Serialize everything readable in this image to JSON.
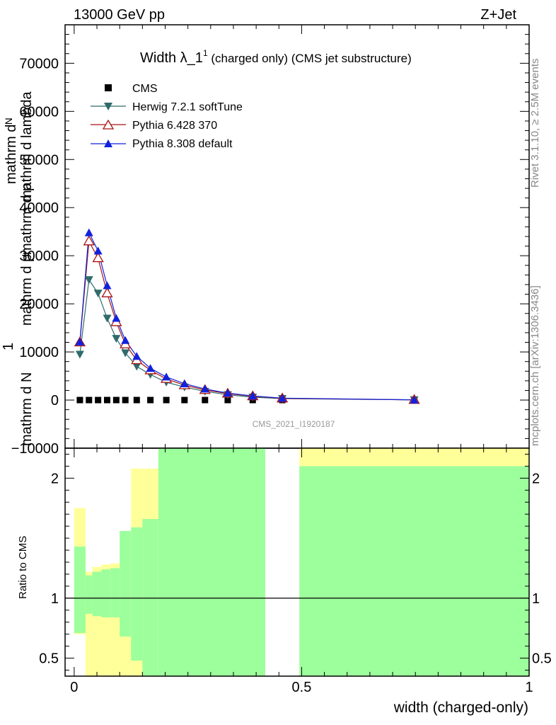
{
  "header": {
    "left": "13000 GeV pp",
    "right": "Z+Jet",
    "rivet": "Rivet 3.1.10, ≥ 2.5M events",
    "mcplots": "mcplots.cern.ch [arXiv:1306.3436]",
    "watermark": "CMS_2021_I1920187"
  },
  "plot_title": {
    "main": "Width λ_1",
    "sup": "1",
    "rest": " (charged only) (CMS jet substructure)"
  },
  "ylabel_lines": [
    "mathrm d N",
    "mathrm d p",
    "mathrm d lambda",
    "mathrm dᴺ",
    "mathrm d p",
    "1"
  ],
  "ratio_ylabel": "Ratio to CMS",
  "xlabel": "width (charged-only)",
  "colors": {
    "cms": "#000000",
    "herwig": "#2f6b6b",
    "pythia6": "#aa1111",
    "pythia8": "#1122dd",
    "band_inner": "#9cff9c",
    "band_outer": "#ffff99"
  },
  "chart_data": [
    {
      "type": "line",
      "x": [
        0.0125,
        0.0325,
        0.0525,
        0.0725,
        0.0925,
        0.1125,
        0.1375,
        0.1675,
        0.2025,
        0.2425,
        0.2875,
        0.3375,
        0.3925,
        0.4575,
        0.7475
      ],
      "series": [
        {
          "name": "CMS",
          "marker": "square",
          "values": [
            0,
            0,
            0,
            0,
            0,
            0,
            0,
            0,
            0,
            0,
            0,
            0,
            0,
            0,
            0
          ]
        },
        {
          "name": "Herwig 7.2.1 softTune",
          "marker": "triangle-down",
          "values": [
            9500,
            25000,
            22200,
            17000,
            12800,
            9800,
            7000,
            5300,
            3700,
            2700,
            1800,
            1100,
            600,
            300,
            50
          ]
        },
        {
          "name": "Pythia 6.428 370",
          "marker": "triangle-up-open",
          "values": [
            12000,
            33000,
            29500,
            22200,
            16200,
            11600,
            8300,
            6200,
            4400,
            3100,
            2100,
            1350,
            800,
            350,
            40
          ]
        },
        {
          "name": "Pythia 8.308 default",
          "marker": "triangle-up",
          "values": [
            12100,
            34800,
            31000,
            23800,
            17000,
            12400,
            9100,
            6600,
            4800,
            3400,
            2300,
            1450,
            850,
            400,
            40
          ]
        }
      ],
      "xlim": [
        -0.02,
        1.0
      ],
      "ylim": [
        -10000,
        78000
      ],
      "yticks": [
        -10000,
        0,
        10000,
        20000,
        30000,
        40000,
        50000,
        60000,
        70000
      ],
      "ytick_labels": [
        "−10000",
        "0",
        "10000",
        "20000",
        "30000",
        "40000",
        "50000",
        "60000",
        "70000"
      ],
      "legend": "top-left"
    },
    {
      "type": "area",
      "ylabel": "Ratio to CMS",
      "xlabel": "width (charged-only)",
      "xlim": [
        -0.02,
        1.0
      ],
      "ylim": [
        0.35,
        2.25
      ],
      "xticks": [
        0,
        0.5,
        1
      ],
      "xtick_labels": [
        "0",
        "0.5",
        "1"
      ],
      "yticks": [
        0.5,
        1,
        2
      ],
      "ytick_labels": [
        "0.5",
        "1",
        "2"
      ],
      "bins": [
        {
          "lo": 0.0,
          "hi": 0.025,
          "outer": [
            0.7,
            1.75
          ],
          "inner": [
            0.71,
            1.43
          ]
        },
        {
          "lo": 0.025,
          "hi": 0.04,
          "outer": [
            0.35,
            1.22
          ],
          "inner": [
            0.87,
            1.19
          ]
        },
        {
          "lo": 0.04,
          "hi": 0.06,
          "outer": [
            0.35,
            1.26
          ],
          "inner": [
            0.85,
            1.22
          ]
        },
        {
          "lo": 0.06,
          "hi": 0.08,
          "outer": [
            0.35,
            1.28
          ],
          "inner": [
            0.84,
            1.24
          ]
        },
        {
          "lo": 0.08,
          "hi": 0.1,
          "outer": [
            0.35,
            1.29
          ],
          "inner": [
            0.84,
            1.25
          ]
        },
        {
          "lo": 0.1,
          "hi": 0.125,
          "outer": [
            0.35,
            1.47
          ],
          "inner": [
            0.68,
            1.56
          ]
        },
        {
          "lo": 0.125,
          "hi": 0.15,
          "outer": [
            0.35,
            2.08
          ],
          "inner": [
            0.48,
            1.59
          ]
        },
        {
          "lo": 0.15,
          "hi": 0.185,
          "outer": [
            0.35,
            2.08
          ],
          "inner": [
            0.35,
            1.66
          ]
        },
        {
          "lo": 0.185,
          "hi": 0.42,
          "outer": [
            0.35,
            2.25
          ],
          "inner": [
            0.35,
            2.25
          ]
        },
        {
          "lo": 0.495,
          "hi": 1.0,
          "outer": [
            0.35,
            2.25
          ],
          "inner": [
            0.35,
            2.1
          ]
        }
      ]
    }
  ]
}
